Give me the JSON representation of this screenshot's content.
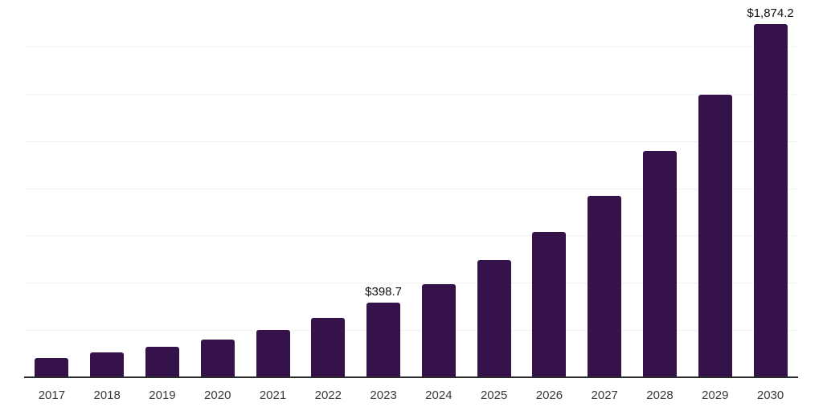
{
  "chart_data": {
    "type": "bar",
    "categories": [
      "2017",
      "2018",
      "2019",
      "2020",
      "2021",
      "2022",
      "2023",
      "2024",
      "2025",
      "2026",
      "2027",
      "2028",
      "2029",
      "2030"
    ],
    "values": [
      106,
      134,
      167,
      206,
      256,
      319,
      398.7,
      498,
      624,
      774,
      962,
      1200,
      1500,
      1874.2
    ],
    "title": "",
    "xlabel": "",
    "ylabel": "",
    "ylim": [
      0,
      2000
    ],
    "gridline_step": 250,
    "grid": true,
    "legend": false,
    "annotations": [
      {
        "category": "2023",
        "label": "$398.7"
      },
      {
        "category": "2030",
        "label": "$1,874.2"
      }
    ],
    "colors": {
      "bar": "#351249",
      "axis_line": "#2b2b2b",
      "gridline": "#f2f2f2",
      "tick_label": "#3a3a3a",
      "data_label": "#111111",
      "background": "#ffffff"
    }
  }
}
